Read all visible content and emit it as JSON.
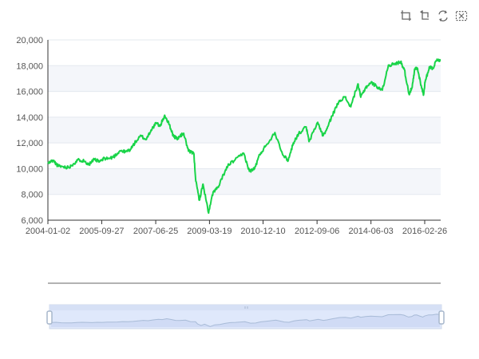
{
  "toolbox": {
    "tools": [
      {
        "name": "zoom-icon",
        "color": "#666666"
      },
      {
        "name": "zoom-reset-icon",
        "color": "#666666"
      },
      {
        "name": "restore-icon",
        "color": "#666666"
      },
      {
        "name": "save-image-icon",
        "color": "#666666"
      }
    ]
  },
  "chart_data": {
    "type": "line",
    "title": "",
    "xlabel": "",
    "ylabel": "",
    "ylim": [
      6000,
      20000
    ],
    "yticks": [
      "6,000",
      "8,000",
      "10,000",
      "12,000",
      "14,000",
      "16,000",
      "18,000",
      "20,000"
    ],
    "xticks": [
      "2004-01-02",
      "2005-09-27",
      "2007-06-25",
      "2009-03-19",
      "2010-12-10",
      "2012-09-06",
      "2014-06-03",
      "2016-02-26"
    ],
    "grid": true,
    "legend": "none",
    "colors": {
      "line": "#19d448",
      "band": "#f4f6fa",
      "grid": "#e3e8ef",
      "axis": "#333333",
      "slider_fill": "#dfe8fb",
      "slider_border": "#cfd8ea",
      "slider_handle": "#a7b7cc",
      "slider_line": "#a8bbd7",
      "preview_line": "#c2c9d5"
    },
    "series": [
      {
        "x": [
          "2004-01-02",
          "2004-03-01",
          "2004-05-03",
          "2004-07-01",
          "2004-09-01",
          "2004-11-01",
          "2005-01-03",
          "2005-03-01",
          "2005-05-02",
          "2005-07-01",
          "2005-09-01",
          "2005-11-01",
          "2006-01-03",
          "2006-03-01",
          "2006-05-01",
          "2006-07-03",
          "2006-09-01",
          "2006-11-01",
          "2007-01-03",
          "2007-03-01",
          "2007-05-01",
          "2007-07-02",
          "2007-08-15",
          "2007-10-09",
          "2007-12-03",
          "2008-01-22",
          "2008-03-10",
          "2008-05-19",
          "2008-07-15",
          "2008-09-15",
          "2008-10-10",
          "2008-11-20",
          "2009-01-02",
          "2009-03-09",
          "2009-05-01",
          "2009-07-01",
          "2009-09-01",
          "2009-11-02",
          "2010-01-04",
          "2010-04-26",
          "2010-07-02",
          "2010-09-01",
          "2010-11-01",
          "2011-01-03",
          "2011-04-29",
          "2011-08-08",
          "2011-10-03",
          "2011-12-01",
          "2012-02-01",
          "2012-05-01",
          "2012-06-04",
          "2012-09-14",
          "2012-11-15",
          "2013-01-02",
          "2013-03-01",
          "2013-05-28",
          "2013-08-01",
          "2013-10-08",
          "2013-12-31",
          "2014-02-03",
          "2014-04-01",
          "2014-06-03",
          "2014-08-07",
          "2014-10-15",
          "2014-12-26",
          "2015-03-02",
          "2015-05-19",
          "2015-07-01",
          "2015-08-25",
          "2015-10-01",
          "2015-11-02",
          "2015-12-01",
          "2016-01-04",
          "2016-02-11",
          "2016-03-01",
          "2016-04-20",
          "2016-06-01",
          "2016-07-20",
          "2016-09-01"
        ],
        "values": [
          10400,
          10650,
          10200,
          10150,
          10100,
          10400,
          10700,
          10600,
          10350,
          10700,
          10550,
          10800,
          10800,
          11000,
          11400,
          11300,
          11500,
          12100,
          12550,
          12250,
          13000,
          13550,
          13300,
          14150,
          13400,
          12500,
          12350,
          12750,
          11350,
          11200,
          9000,
          7550,
          8800,
          6550,
          8200,
          8550,
          9550,
          10350,
          10600,
          11200,
          9800,
          10000,
          11100,
          11700,
          12800,
          11000,
          10650,
          12000,
          12700,
          13250,
          12100,
          13600,
          12550,
          13100,
          14100,
          15300,
          15550,
          14800,
          16580,
          15550,
          16300,
          16700,
          16400,
          16100,
          18050,
          18100,
          18300,
          17700,
          15800,
          16300,
          17750,
          17800,
          16800,
          15700,
          16700,
          17900,
          17800,
          18500,
          18400
        ]
      }
    ]
  }
}
